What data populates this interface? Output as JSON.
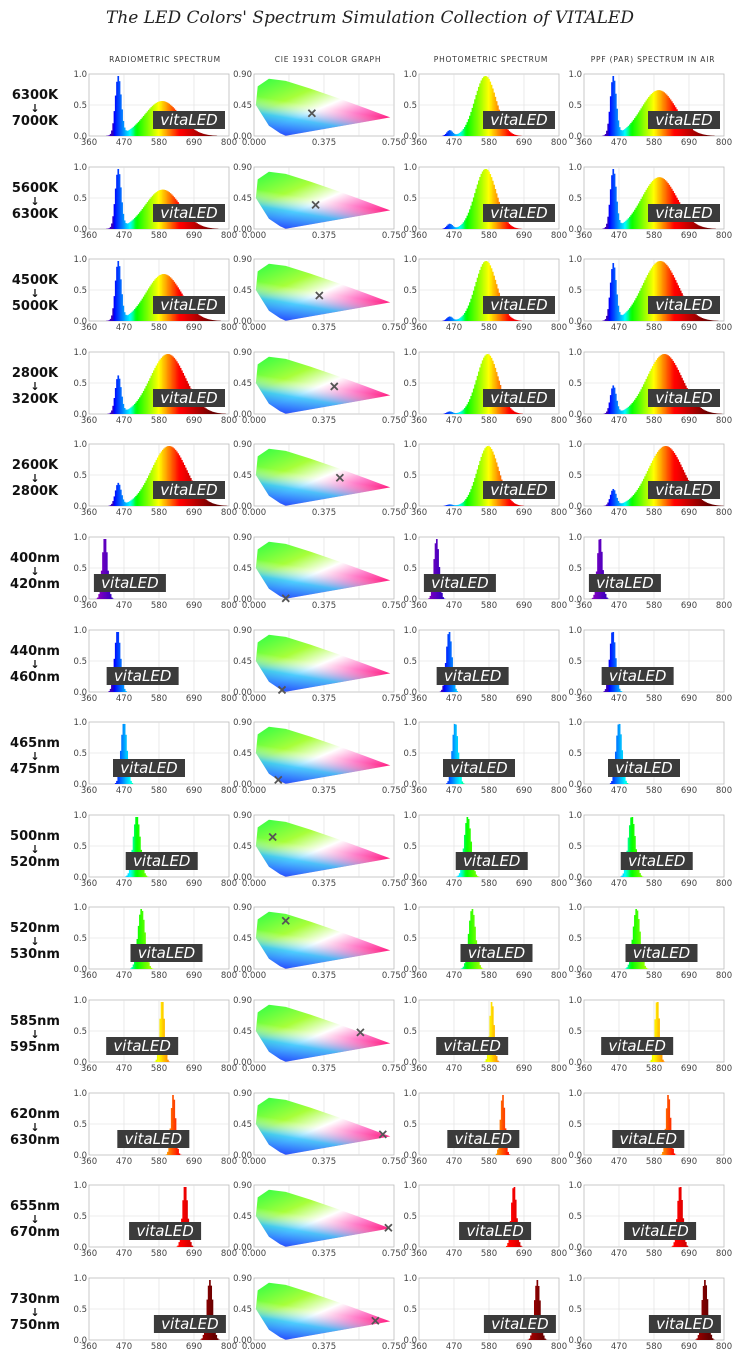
{
  "title": "The LED Colors' Spectrum Simulation Collection of VITALED",
  "watermark": "vitaLED",
  "arrow": "↓",
  "columns": [
    "RADIOMETRIC SPECTRUM",
    "CIE 1931 COLOR GRAPH",
    "PHOTOMETRIC SPECTRUM",
    "PPF (PAR) SPECTRUM IN AIR"
  ],
  "chart_data": {
    "type": "area",
    "spectrum_axis": {
      "xlim": [
        360,
        800
      ],
      "ylim": [
        0,
        1.0
      ],
      "xticks": [
        360,
        470,
        580,
        690,
        800
      ],
      "yticks": [
        "0.0",
        "0.5",
        "1.0"
      ]
    },
    "cie_axis": {
      "xlim": [
        0,
        0.75
      ],
      "ylim": [
        0,
        0.9
      ],
      "xticks": [
        "0.000",
        "0.375",
        "0.750"
      ],
      "yticks": [
        "0.00",
        "0.45",
        "0.90"
      ]
    },
    "rows": [
      {
        "top": "6300K",
        "bottom": "7000K",
        "type": "white",
        "blue": 0.92,
        "phos": 0.55,
        "phos_center": 590,
        "cie": [
          0.31,
          0.33
        ]
      },
      {
        "top": "5600K",
        "bottom": "6300K",
        "type": "white",
        "blue": 0.92,
        "phos": 0.62,
        "phos_center": 592,
        "cie": [
          0.33,
          0.35
        ]
      },
      {
        "top": "4500K",
        "bottom": "5000K",
        "type": "white",
        "blue": 0.92,
        "phos": 0.74,
        "phos_center": 595,
        "cie": [
          0.35,
          0.37
        ]
      },
      {
        "top": "2800K",
        "bottom": "3200K",
        "type": "white",
        "blue": 0.6,
        "phos": 0.96,
        "phos_center": 608,
        "cie": [
          0.43,
          0.4
        ]
      },
      {
        "top": "2600K",
        "bottom": "2800K",
        "type": "white",
        "blue": 0.36,
        "phos": 0.97,
        "phos_center": 612,
        "cie": [
          0.46,
          0.41
        ]
      },
      {
        "top": "400nm",
        "bottom": "420nm",
        "type": "mono",
        "peak": 410,
        "width": 8,
        "cie": [
          0.17,
          0.01
        ]
      },
      {
        "top": "440nm",
        "bottom": "460nm",
        "type": "mono",
        "peak": 450,
        "width": 9,
        "cie": [
          0.15,
          0.03
        ]
      },
      {
        "top": "465nm",
        "bottom": "475nm",
        "type": "mono",
        "peak": 470,
        "width": 9,
        "cie": [
          0.13,
          0.06
        ]
      },
      {
        "top": "500nm",
        "bottom": "520nm",
        "type": "mono",
        "peak": 510,
        "width": 11,
        "cie": [
          0.1,
          0.58
        ]
      },
      {
        "top": "520nm",
        "bottom": "530nm",
        "type": "mono",
        "peak": 525,
        "width": 11,
        "cie": [
          0.17,
          0.7
        ]
      },
      {
        "top": "585nm",
        "bottom": "595nm",
        "type": "mono",
        "peak": 590,
        "width": 7,
        "cie": [
          0.57,
          0.43
        ]
      },
      {
        "top": "620nm",
        "bottom": "630nm",
        "type": "mono",
        "peak": 625,
        "width": 7,
        "cie": [
          0.69,
          0.3
        ]
      },
      {
        "top": "655nm",
        "bottom": "670nm",
        "type": "mono",
        "peak": 662,
        "width": 8,
        "cie": [
          0.72,
          0.28
        ]
      },
      {
        "top": "730nm",
        "bottom": "750nm",
        "type": "mono",
        "peak": 740,
        "width": 9,
        "cie": [
          0.65,
          0.28
        ]
      }
    ]
  }
}
